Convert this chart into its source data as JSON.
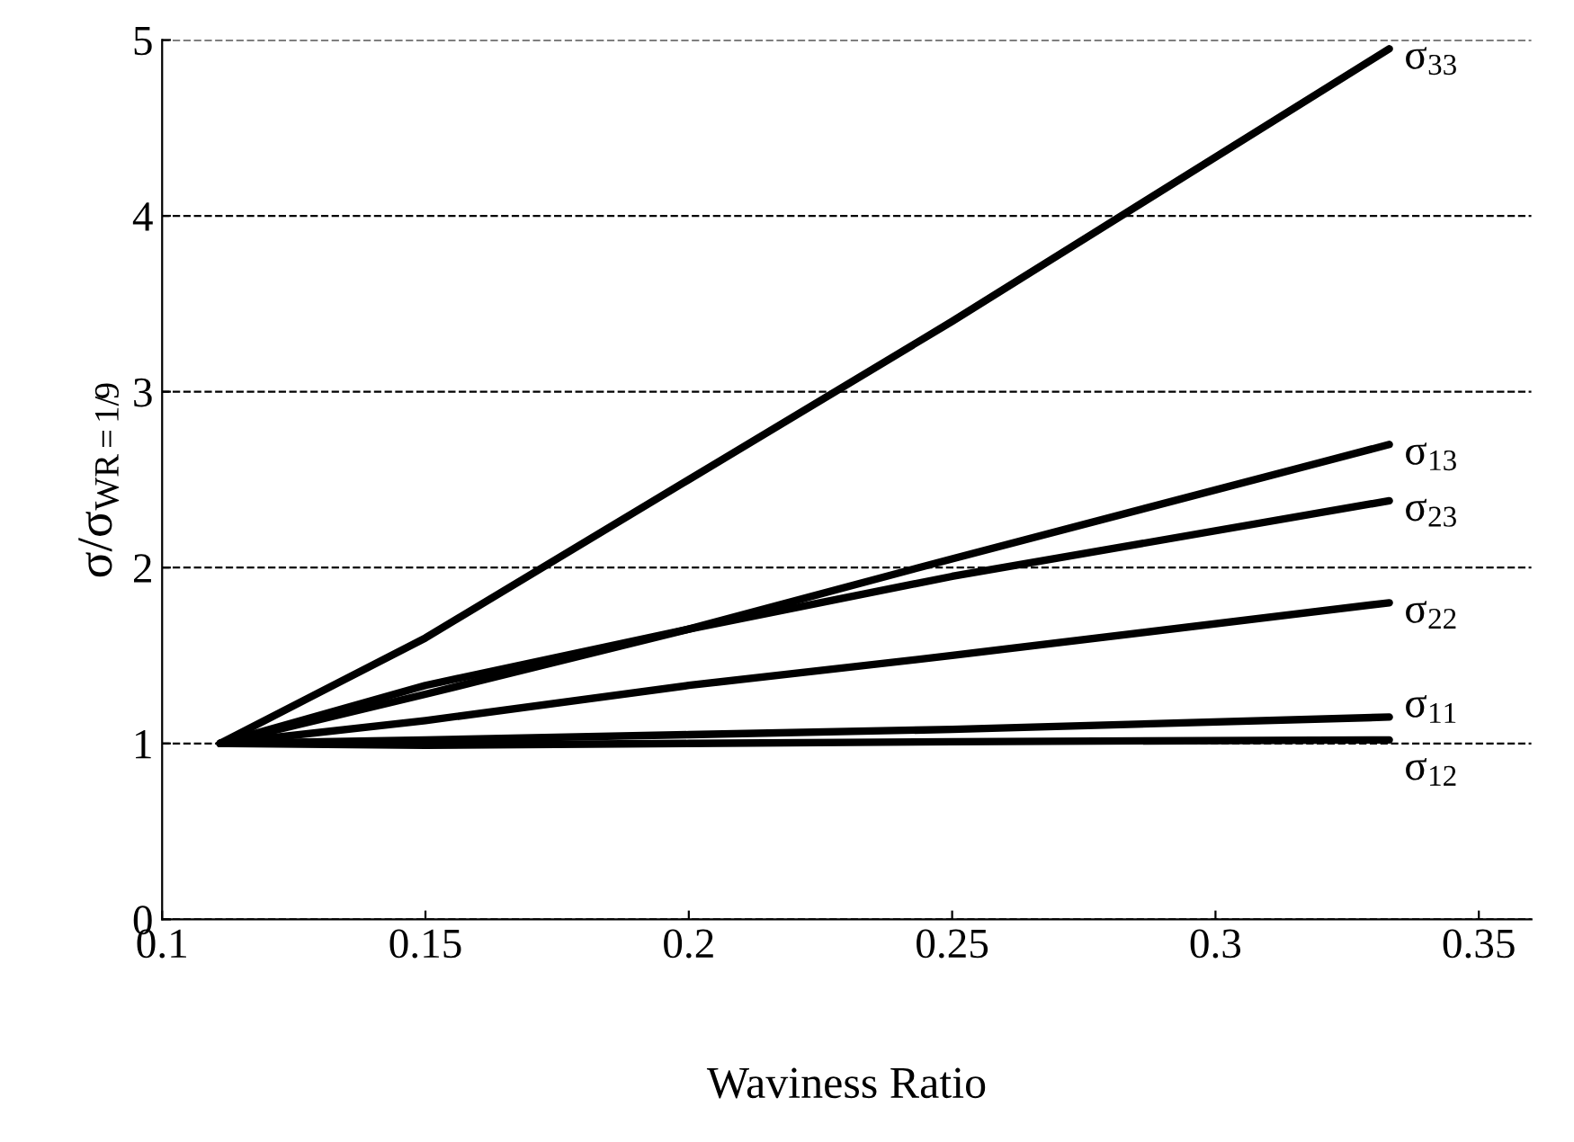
{
  "chart_data": {
    "type": "line",
    "xlabel": "Waviness Ratio",
    "ylabel": "σ/σ$_{WR=1/9}$",
    "x": [
      0.111,
      0.15,
      0.2,
      0.25,
      0.333
    ],
    "series": [
      {
        "name": "σ$_{33}$",
        "color": "#000000",
        "values": [
          1,
          1.6,
          2.5,
          3.4,
          4.95
        ]
      },
      {
        "name": "σ$_{13}$",
        "color": "#000000",
        "values": [
          1,
          1.28,
          1.65,
          2.05,
          2.7
        ]
      },
      {
        "name": "σ$_{23}$",
        "color": "#000000",
        "values": [
          1,
          1.33,
          1.65,
          1.95,
          2.38
        ]
      },
      {
        "name": "σ$_{22}$",
        "color": "#000000",
        "values": [
          1,
          1.13,
          1.33,
          1.5,
          1.8
        ]
      },
      {
        "name": "σ$_{11}$",
        "color": "#000000",
        "values": [
          1,
          1.02,
          1.05,
          1.08,
          1.15
        ]
      },
      {
        "name": "σ$_{12}$",
        "color": "#000000",
        "values": [
          1,
          0.99,
          1.0,
          1.01,
          1.02
        ]
      }
    ],
    "xlim": [
      0.1,
      0.36
    ],
    "xticks": [
      0.1,
      0.15,
      0.2,
      0.25,
      0.3,
      0.35
    ],
    "ylim": [
      0,
      5
    ],
    "yticks": [
      0,
      1,
      2,
      3,
      4,
      5
    ],
    "grid": "y",
    "line_style": "solid",
    "legend": false
  }
}
